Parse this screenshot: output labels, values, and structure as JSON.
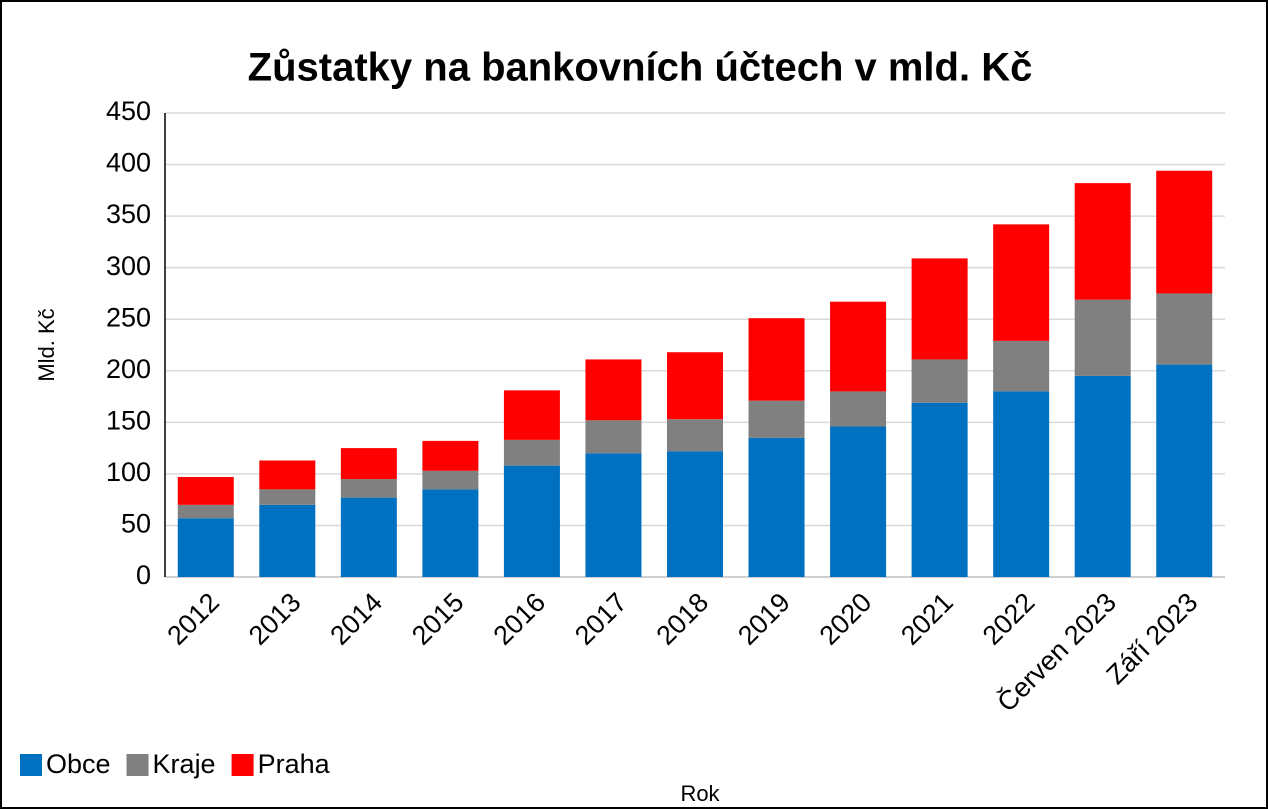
{
  "chart_data": {
    "type": "bar",
    "stacked": true,
    "title": "Zůstatky na bankovních účtech v mld. Kč",
    "x_label": "Rok",
    "y_label": "Mld. Kč",
    "categories": [
      "2012",
      "2013",
      "2014",
      "2015",
      "2016",
      "2017",
      "2018",
      "2019",
      "2020",
      "2021",
      "2022",
      "Červen 2023",
      "Září 2023"
    ],
    "series": [
      {
        "name": "Obce",
        "color": "#0070c0",
        "values": [
          57,
          70,
          77,
          85,
          108,
          120,
          122,
          135,
          146,
          169,
          180,
          195,
          206
        ]
      },
      {
        "name": "Kraje",
        "color": "#808080",
        "values": [
          13,
          15,
          18,
          18,
          25,
          32,
          31,
          36,
          34,
          42,
          49,
          74,
          69
        ]
      },
      {
        "name": "Praha",
        "color": "#ff0000",
        "values": [
          27,
          28,
          30,
          29,
          48,
          59,
          65,
          80,
          87,
          98,
          113,
          113,
          119
        ]
      }
    ],
    "ylim": [
      0,
      450
    ],
    "yticks": [
      0,
      50,
      100,
      150,
      200,
      250,
      300,
      350,
      400,
      450
    ],
    "grid": true,
    "legend": "bottom-left"
  }
}
